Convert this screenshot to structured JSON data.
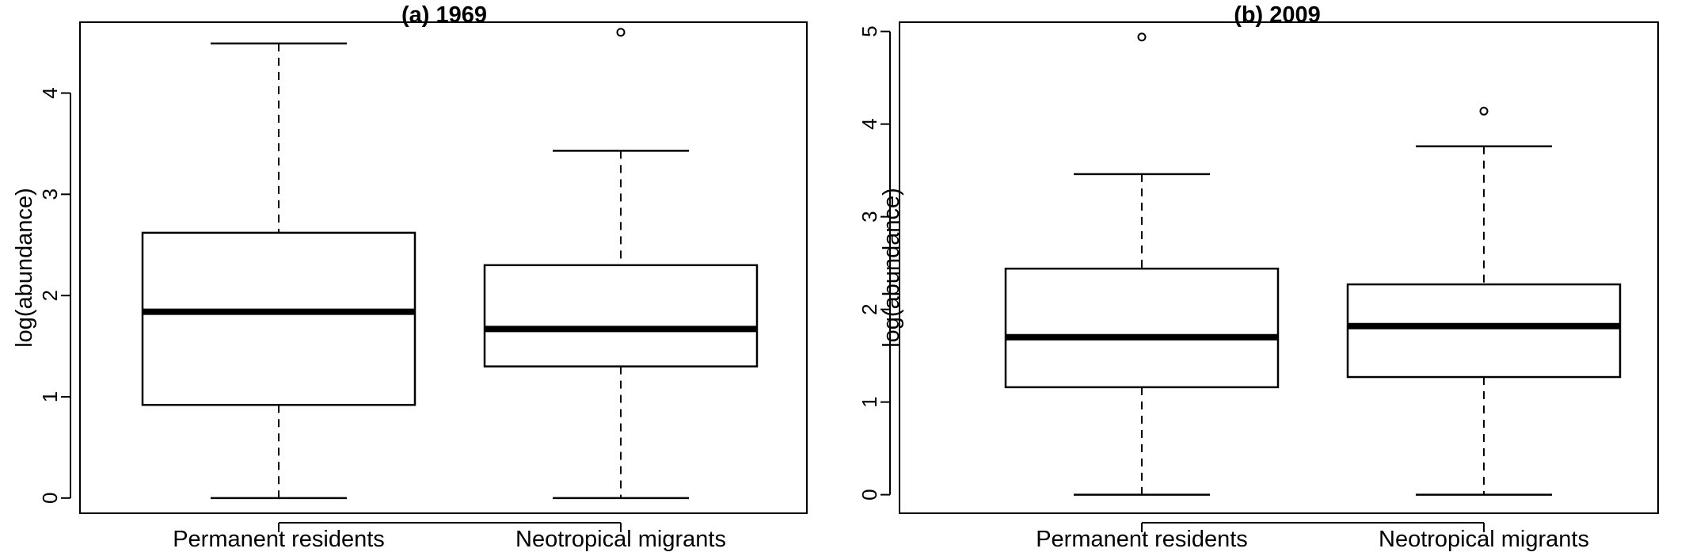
{
  "chart_data": [
    {
      "type": "boxplot",
      "title": "(a) 1969",
      "xlabel": "",
      "ylabel": "log(abundance)",
      "ylim": [
        -0.15,
        4.7
      ],
      "yticks": [
        0,
        1,
        2,
        3,
        4
      ],
      "categories": [
        "Permanent residents",
        "Neotropical migrants"
      ],
      "boxes": [
        {
          "min": 0,
          "q1": 0.92,
          "median": 1.84,
          "q3": 2.62,
          "max": 4.49,
          "outliers": []
        },
        {
          "min": 0,
          "q1": 1.3,
          "median": 1.67,
          "q3": 2.3,
          "max": 3.43,
          "outliers": [
            4.6
          ]
        }
      ]
    },
    {
      "type": "boxplot",
      "title": "(b) 2009",
      "xlabel": "",
      "ylabel": "log(abundance)",
      "ylim": [
        -0.2,
        5.1
      ],
      "yticks": [
        0,
        1,
        2,
        3,
        4,
        5
      ],
      "categories": [
        "Permanent residents",
        "Neotropical migrants"
      ],
      "boxes": [
        {
          "min": 0,
          "q1": 1.16,
          "median": 1.7,
          "q3": 2.44,
          "max": 3.46,
          "outliers": [
            4.94
          ]
        },
        {
          "min": 0,
          "q1": 1.27,
          "median": 1.82,
          "q3": 2.27,
          "max": 3.76,
          "outliers": [
            4.14
          ]
        }
      ]
    }
  ]
}
